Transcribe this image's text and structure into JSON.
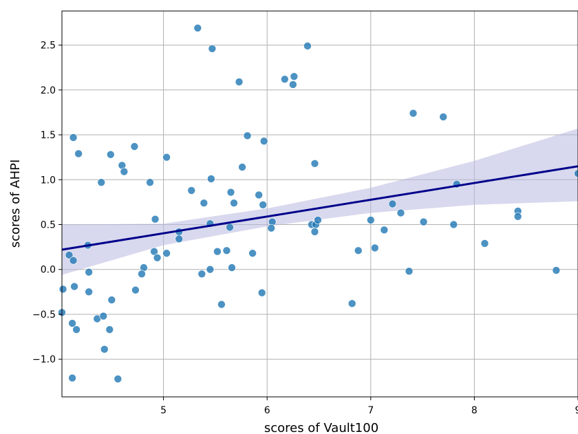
{
  "chart_data": {
    "type": "scatter",
    "xlabel": "scores of Vault100",
    "ylabel": "scores of AHPI",
    "xlim": [
      4.02,
      9.0
    ],
    "ylim": [
      -1.42,
      2.88
    ],
    "xticks": [
      5,
      6,
      7,
      8,
      9
    ],
    "xtick_labels": [
      "5",
      "6",
      "7",
      "8",
      "9"
    ],
    "yticks": [
      -1.0,
      -0.5,
      0.0,
      0.5,
      1.0,
      1.5,
      2.0,
      2.5
    ],
    "ytick_labels": [
      "−1.0",
      "−0.5",
      "0.0",
      "0.5",
      "1.0",
      "1.5",
      "2.0",
      "2.5"
    ],
    "grid": true,
    "colors": {
      "points": "#1f77b4",
      "line": "#00008b",
      "band": "#b8b8e0"
    },
    "points": [
      [
        5.33,
        2.69
      ],
      [
        5.47,
        2.46
      ],
      [
        6.39,
        2.49
      ],
      [
        5.73,
        2.09
      ],
      [
        6.17,
        2.12
      ],
      [
        6.26,
        2.15
      ],
      [
        6.25,
        2.06
      ],
      [
        7.41,
        1.74
      ],
      [
        7.7,
        1.7
      ],
      [
        4.13,
        1.47
      ],
      [
        4.18,
        1.29
      ],
      [
        4.49,
        1.28
      ],
      [
        4.72,
        1.37
      ],
      [
        5.03,
        1.25
      ],
      [
        5.81,
        1.49
      ],
      [
        5.97,
        1.43
      ],
      [
        4.6,
        1.16
      ],
      [
        4.62,
        1.09
      ],
      [
        5.76,
        1.14
      ],
      [
        6.46,
        1.18
      ],
      [
        4.4,
        0.97
      ],
      [
        4.87,
        0.97
      ],
      [
        5.27,
        0.88
      ],
      [
        5.46,
        1.01
      ],
      [
        5.65,
        0.86
      ],
      [
        5.39,
        0.74
      ],
      [
        5.68,
        0.74
      ],
      [
        5.92,
        0.83
      ],
      [
        5.96,
        0.72
      ],
      [
        7.83,
        0.95
      ],
      [
        9.0,
        1.07
      ],
      [
        4.92,
        0.56
      ],
      [
        5.45,
        0.51
      ],
      [
        5.15,
        0.42
      ],
      [
        5.64,
        0.47
      ],
      [
        6.05,
        0.53
      ],
      [
        6.04,
        0.46
      ],
      [
        6.43,
        0.5
      ],
      [
        6.47,
        0.5
      ],
      [
        6.49,
        0.55
      ],
      [
        6.46,
        0.42
      ],
      [
        7.0,
        0.55
      ],
      [
        7.13,
        0.44
      ],
      [
        7.21,
        0.73
      ],
      [
        7.29,
        0.63
      ],
      [
        7.51,
        0.53
      ],
      [
        7.8,
        0.5
      ],
      [
        8.42,
        0.65
      ],
      [
        8.42,
        0.59
      ],
      [
        4.27,
        0.27
      ],
      [
        5.15,
        0.34
      ],
      [
        4.91,
        0.2
      ],
      [
        5.03,
        0.18
      ],
      [
        5.52,
        0.2
      ],
      [
        5.61,
        0.21
      ],
      [
        5.86,
        0.18
      ],
      [
        6.88,
        0.21
      ],
      [
        7.04,
        0.24
      ],
      [
        8.1,
        0.29
      ],
      [
        4.09,
        0.16
      ],
      [
        4.13,
        0.1
      ],
      [
        4.94,
        0.13
      ],
      [
        4.81,
        0.02
      ],
      [
        4.79,
        -0.05
      ],
      [
        5.37,
        -0.05
      ],
      [
        5.45,
        0.0
      ],
      [
        5.66,
        0.02
      ],
      [
        7.37,
        -0.02
      ],
      [
        8.79,
        -0.01
      ],
      [
        4.03,
        -0.22
      ],
      [
        4.14,
        -0.19
      ],
      [
        4.28,
        -0.03
      ],
      [
        4.28,
        -0.25
      ],
      [
        4.73,
        -0.23
      ],
      [
        5.95,
        -0.26
      ],
      [
        4.5,
        -0.34
      ],
      [
        5.56,
        -0.39
      ],
      [
        6.82,
        -0.38
      ],
      [
        4.02,
        -0.48
      ],
      [
        4.36,
        -0.55
      ],
      [
        4.42,
        -0.52
      ],
      [
        4.12,
        -0.6
      ],
      [
        4.16,
        -0.67
      ],
      [
        4.48,
        -0.67
      ],
      [
        4.43,
        -0.89
      ],
      [
        4.12,
        -1.21
      ],
      [
        4.56,
        -1.22
      ]
    ],
    "regression": {
      "x": [
        4.02,
        9.0
      ],
      "y": [
        0.22,
        1.15
      ]
    },
    "confidence_band": {
      "x": [
        4.02,
        5.0,
        6.0,
        7.0,
        8.0,
        9.0
      ],
      "lower": [
        -0.06,
        0.27,
        0.48,
        0.63,
        0.72,
        0.76
      ],
      "upper": [
        0.5,
        0.51,
        0.68,
        0.91,
        1.21,
        1.57
      ]
    }
  }
}
